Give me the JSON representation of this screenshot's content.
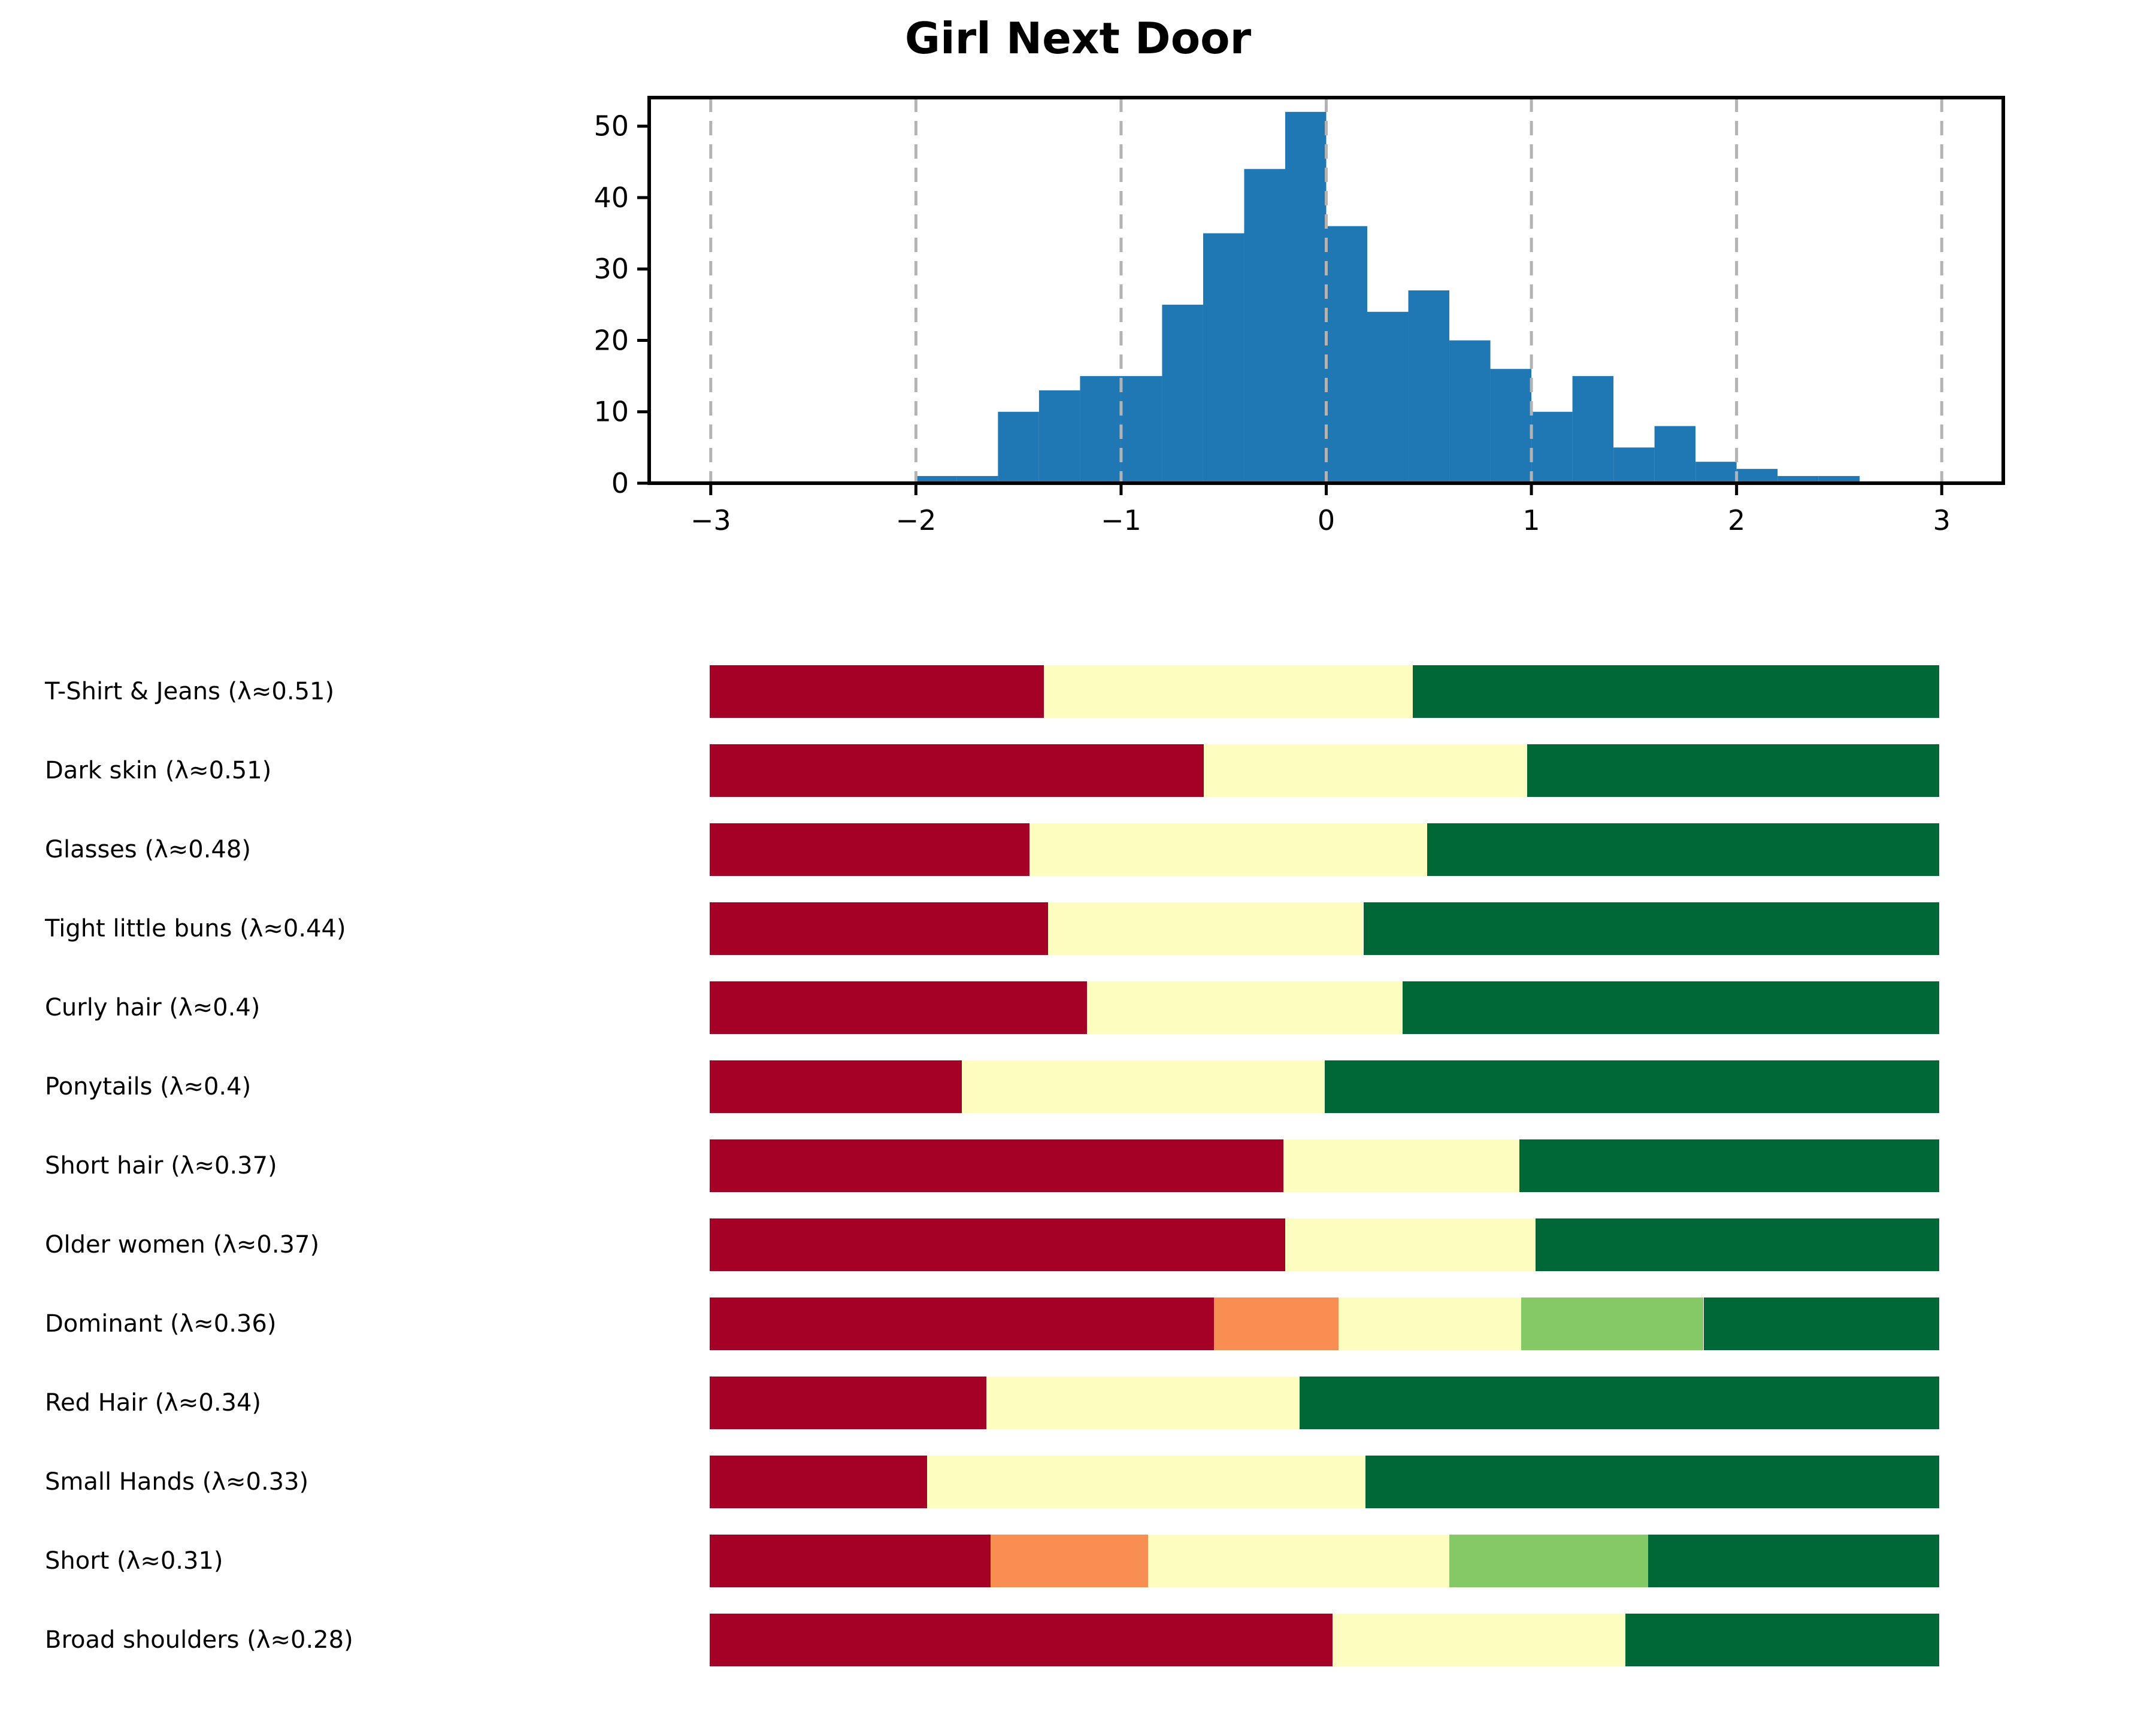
{
  "title": "Girl Next Door",
  "palette": {
    "crimson": "#a50026",
    "orange": "#f98e52",
    "yellow": "#fdfdc0",
    "light_green": "#84c966",
    "dark_green": "#006837",
    "hist_blue": "#1f77b4",
    "gridline_gray": "#b3b3b3",
    "axis_black": "#000000"
  },
  "chart_data": [
    {
      "type": "bar",
      "subtype": "histogram",
      "title": "Girl Next Door",
      "bar_color": "#1f77b4",
      "bin_start": -2.0,
      "bin_width": 0.2,
      "counts": [
        1,
        1,
        10,
        13,
        15,
        15,
        25,
        35,
        44,
        52,
        36,
        24,
        27,
        20,
        16,
        10,
        15,
        5,
        8,
        3,
        2,
        1,
        1
      ],
      "xlim": [
        -3.3,
        3.3
      ],
      "ylim": [
        0,
        54
      ],
      "x_ticks": [
        -3,
        -2,
        -1,
        0,
        1,
        2,
        3
      ],
      "x_tick_labels": [
        "−3",
        "−2",
        "−1",
        "0",
        "1",
        "2",
        "3"
      ],
      "y_ticks": [
        0,
        10,
        20,
        30,
        40,
        50
      ],
      "y_tick_labels": [
        "0",
        "10",
        "20",
        "30",
        "40",
        "50"
      ],
      "grid": "vertical dashed gray lines at every integer x, drawn over bars",
      "legend": "none",
      "xlabel": "",
      "ylabel": ""
    },
    {
      "type": "table",
      "subtype": "stacked-threshold-bars",
      "x_range": [
        -3,
        3
      ],
      "rows": [
        {
          "label": "T-Shirt & Jeans (λ≈0.51)",
          "lambda": 0.51,
          "segments": [
            {
              "color": "crimson",
              "from": -3,
              "to": -1.37
            },
            {
              "color": "yellow",
              "from": -1.37,
              "to": 0.43
            },
            {
              "color": "dark_green",
              "from": 0.43,
              "to": 3
            }
          ]
        },
        {
          "label": "Dark skin (λ≈0.51)",
          "lambda": 0.51,
          "segments": [
            {
              "color": "crimson",
              "from": -3,
              "to": -0.59
            },
            {
              "color": "yellow",
              "from": -0.59,
              "to": 0.99
            },
            {
              "color": "dark_green",
              "from": 0.99,
              "to": 3
            }
          ]
        },
        {
          "label": "Glasses (λ≈0.48)",
          "lambda": 0.48,
          "segments": [
            {
              "color": "crimson",
              "from": -3,
              "to": -1.44
            },
            {
              "color": "yellow",
              "from": -1.44,
              "to": 0.5
            },
            {
              "color": "dark_green",
              "from": 0.5,
              "to": 3
            }
          ]
        },
        {
          "label": "Tight little buns (λ≈0.44)",
          "lambda": 0.44,
          "segments": [
            {
              "color": "crimson",
              "from": -3,
              "to": -1.35
            },
            {
              "color": "yellow",
              "from": -1.35,
              "to": 0.19
            },
            {
              "color": "dark_green",
              "from": 0.19,
              "to": 3
            }
          ]
        },
        {
          "label": "Curly hair (λ≈0.4)",
          "lambda": 0.4,
          "segments": [
            {
              "color": "crimson",
              "from": -3,
              "to": -1.16
            },
            {
              "color": "yellow",
              "from": -1.16,
              "to": 0.38
            },
            {
              "color": "dark_green",
              "from": 0.38,
              "to": 3
            }
          ]
        },
        {
          "label": "Ponytails (λ≈0.4)",
          "lambda": 0.4,
          "segments": [
            {
              "color": "crimson",
              "from": -3,
              "to": -1.77
            },
            {
              "color": "yellow",
              "from": -1.77,
              "to": 0.0
            },
            {
              "color": "dark_green",
              "from": 0.0,
              "to": 3
            }
          ]
        },
        {
          "label": "Short hair (λ≈0.37)",
          "lambda": 0.37,
          "segments": [
            {
              "color": "crimson",
              "from": -3,
              "to": -0.2
            },
            {
              "color": "yellow",
              "from": -0.2,
              "to": 0.95
            },
            {
              "color": "dark_green",
              "from": 0.95,
              "to": 3
            }
          ]
        },
        {
          "label": "Older women (λ≈0.37)",
          "lambda": 0.37,
          "segments": [
            {
              "color": "crimson",
              "from": -3,
              "to": -0.19
            },
            {
              "color": "yellow",
              "from": -0.19,
              "to": 1.03
            },
            {
              "color": "dark_green",
              "from": 1.03,
              "to": 3
            }
          ]
        },
        {
          "label": "Dominant (λ≈0.36)",
          "lambda": 0.36,
          "segments": [
            {
              "color": "crimson",
              "from": -3,
              "to": -0.54
            },
            {
              "color": "orange",
              "from": -0.54,
              "to": 0.07
            },
            {
              "color": "yellow",
              "from": 0.07,
              "to": 0.96
            },
            {
              "color": "light_green",
              "from": 0.96,
              "to": 1.85
            },
            {
              "color": "dark_green",
              "from": 1.85,
              "to": 3
            }
          ]
        },
        {
          "label": "Red Hair (λ≈0.34)",
          "lambda": 0.34,
          "segments": [
            {
              "color": "crimson",
              "from": -3,
              "to": -1.65
            },
            {
              "color": "yellow",
              "from": -1.65,
              "to": -0.12
            },
            {
              "color": "dark_green",
              "from": -0.12,
              "to": 3
            }
          ]
        },
        {
          "label": "Small Hands (λ≈0.33)",
          "lambda": 0.33,
          "segments": [
            {
              "color": "crimson",
              "from": -3,
              "to": -1.94
            },
            {
              "color": "yellow",
              "from": -1.94,
              "to": 0.2
            },
            {
              "color": "dark_green",
              "from": 0.2,
              "to": 3
            }
          ]
        },
        {
          "label": "Short (λ≈0.31)",
          "lambda": 0.31,
          "segments": [
            {
              "color": "crimson",
              "from": -3,
              "to": -1.63
            },
            {
              "color": "orange",
              "from": -1.63,
              "to": -0.86
            },
            {
              "color": "yellow",
              "from": -0.86,
              "to": 0.61
            },
            {
              "color": "light_green",
              "from": 0.61,
              "to": 1.58
            },
            {
              "color": "dark_green",
              "from": 1.58,
              "to": 3
            }
          ]
        },
        {
          "label": "Broad shoulders (λ≈0.28)",
          "lambda": 0.28,
          "segments": [
            {
              "color": "crimson",
              "from": -3,
              "to": 0.04
            },
            {
              "color": "yellow",
              "from": 0.04,
              "to": 1.47
            },
            {
              "color": "dark_green",
              "from": 1.47,
              "to": 3
            }
          ]
        }
      ]
    }
  ]
}
